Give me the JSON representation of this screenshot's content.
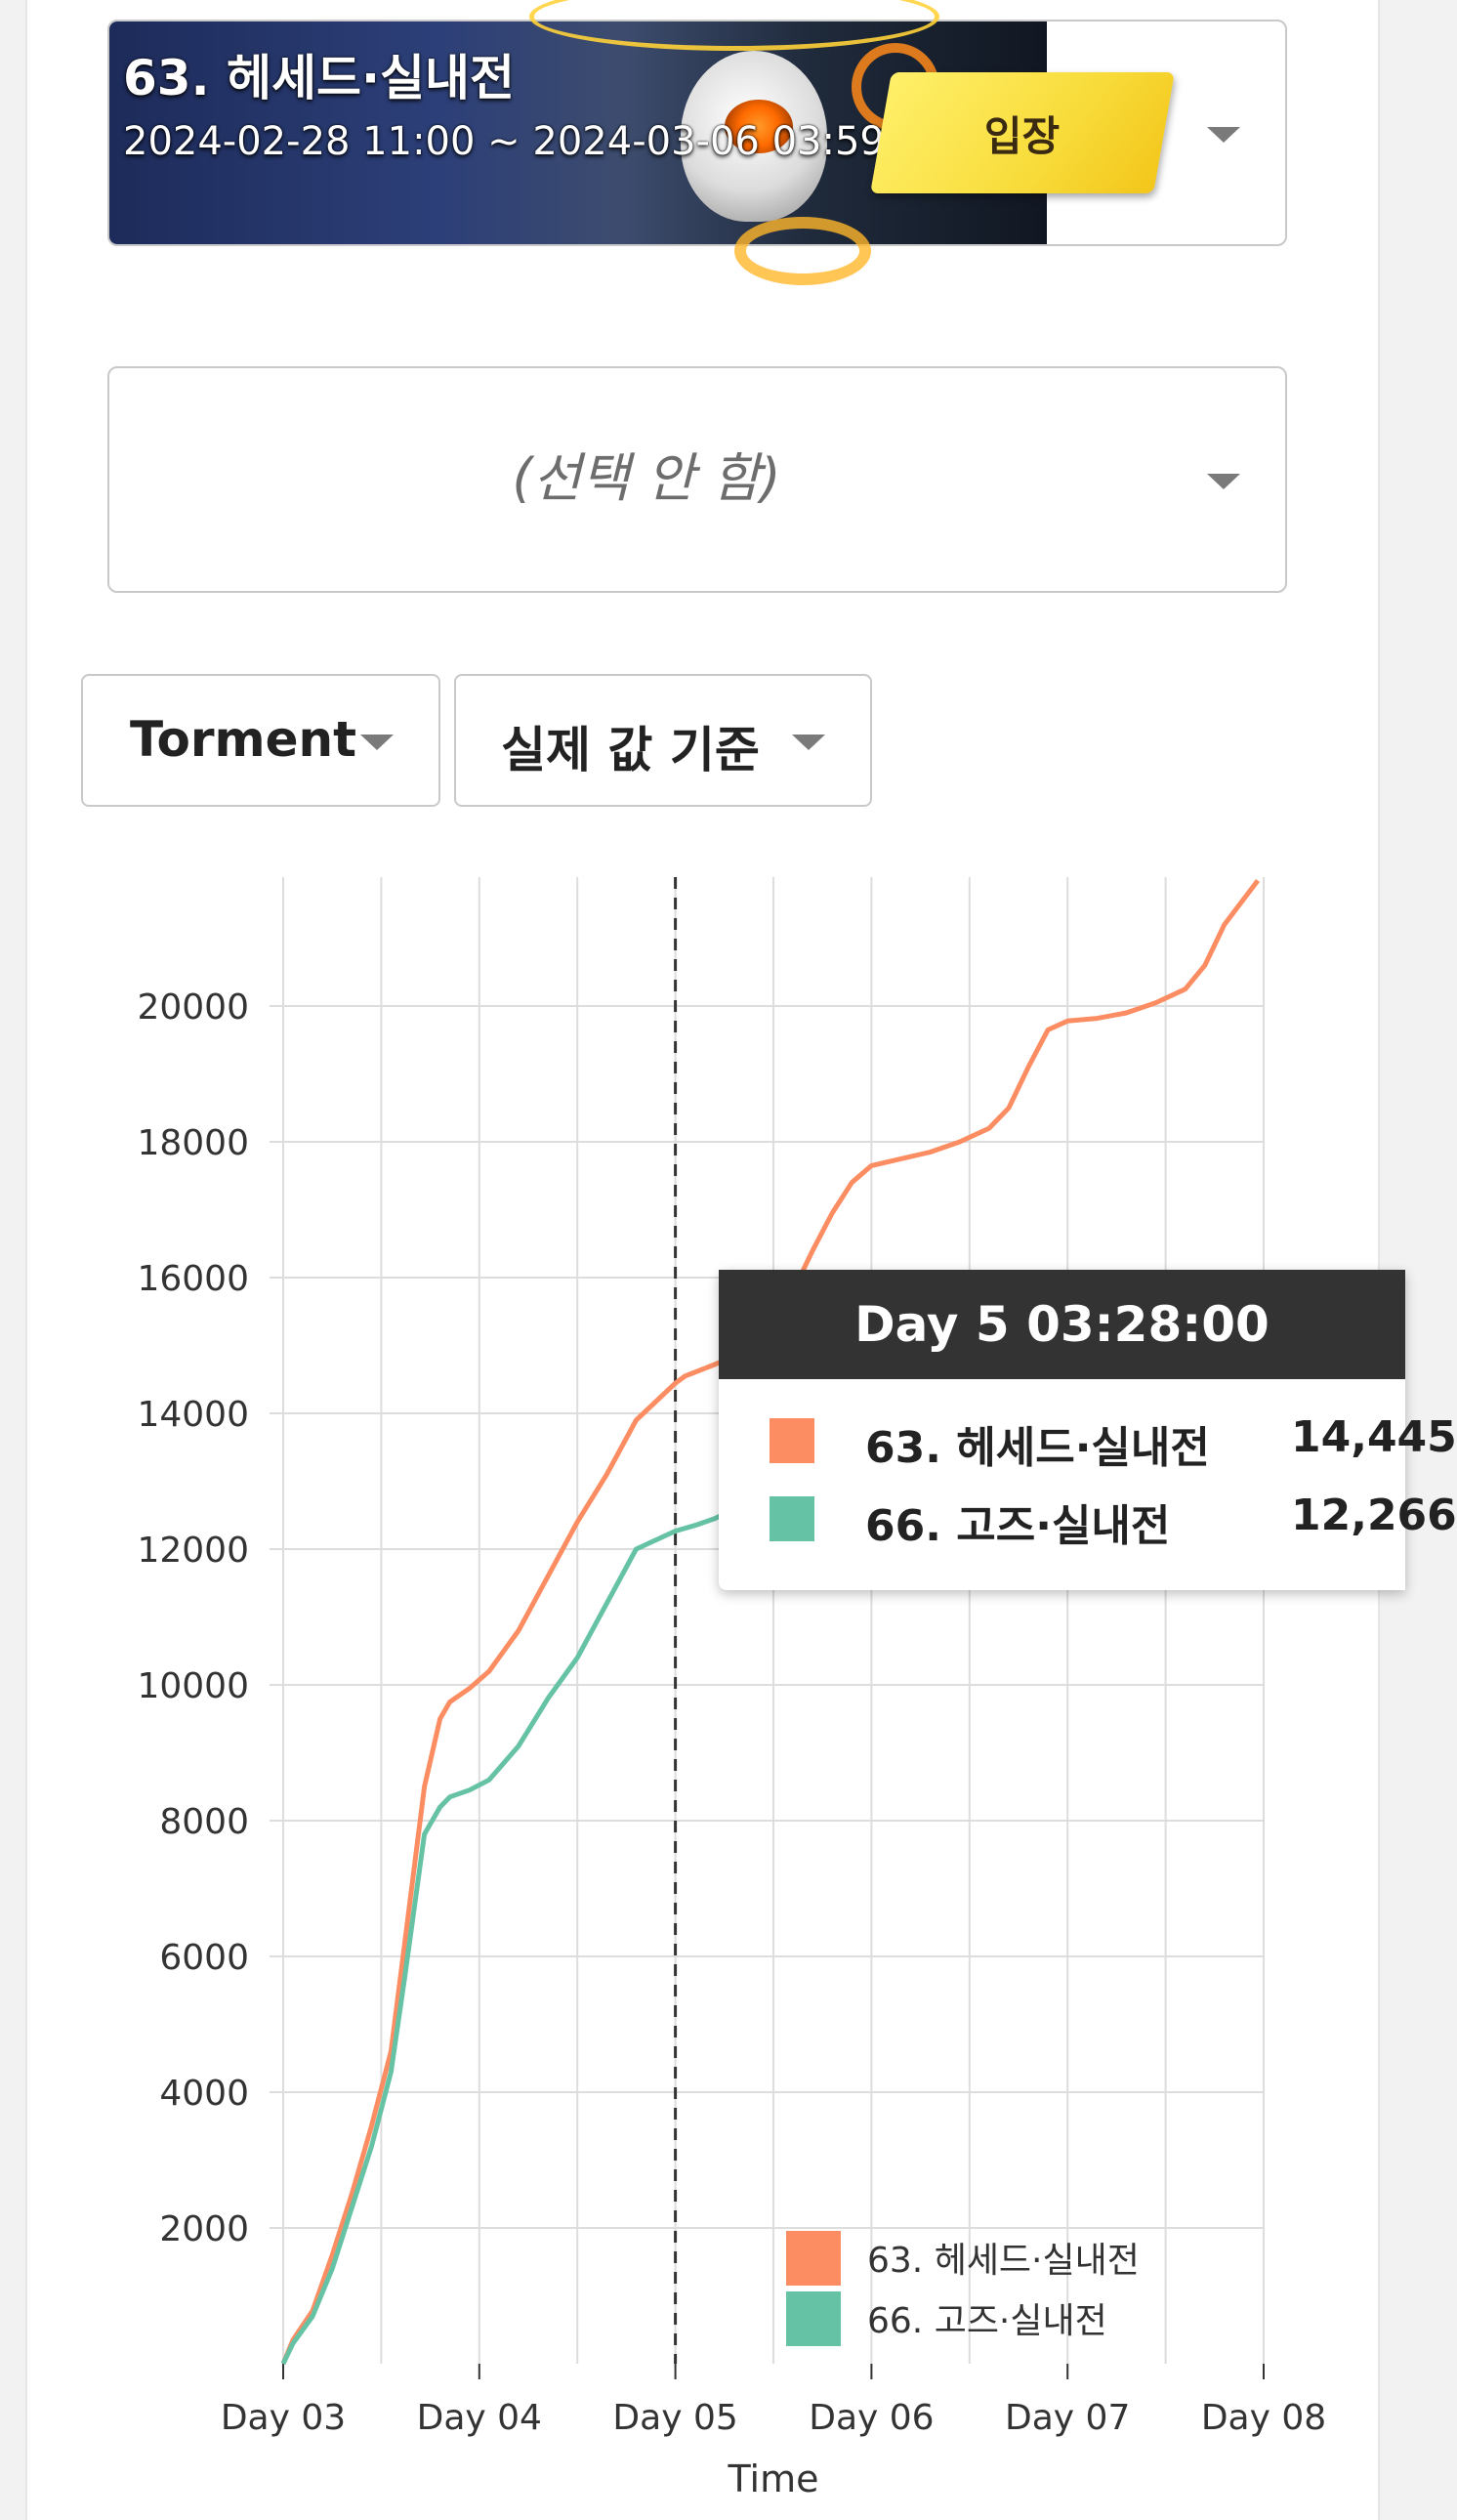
{
  "raid": {
    "title": "63. 헤세드·실내전",
    "dates": "2024-02-28 11:00 ~ 2024-03-06 03:59",
    "enter_label": "입장"
  },
  "compare": {
    "placeholder": "(선택 안 함)"
  },
  "filters": {
    "difficulty": "Torment",
    "mode": "실제 값 기준"
  },
  "tooltip": {
    "title": "Day 5 03:28:00",
    "rows": [
      {
        "name": "63. 헤세드·실내전",
        "value": "14,445",
        "color": "#fc8d62"
      },
      {
        "name": "66. 고즈·실내전",
        "value": "12,266",
        "color": "#66c2a5"
      }
    ]
  },
  "chart_data": {
    "type": "line",
    "xlabel": "Time",
    "ylabel": "",
    "x_ticks": [
      "Day 03",
      "Day 04",
      "Day 05",
      "Day 06",
      "Day 07",
      "Day 08"
    ],
    "y_ticks": [
      2000,
      4000,
      6000,
      8000,
      10000,
      12000,
      14000,
      16000,
      18000,
      20000
    ],
    "xlim": [
      3,
      8
    ],
    "ylim": [
      0,
      21900
    ],
    "grid": true,
    "legend_position": "bottom-right",
    "crosshair_x": 5.0,
    "series": [
      {
        "name": "63. 헤세드·실내전",
        "color": "#fc8d62",
        "points": [
          [
            3.0,
            0
          ],
          [
            3.05,
            350
          ],
          [
            3.15,
            780
          ],
          [
            3.25,
            1600
          ],
          [
            3.35,
            2500
          ],
          [
            3.45,
            3500
          ],
          [
            3.55,
            4600
          ],
          [
            3.62,
            6200
          ],
          [
            3.72,
            8500
          ],
          [
            3.8,
            9500
          ],
          [
            3.85,
            9750
          ],
          [
            3.95,
            9950
          ],
          [
            4.05,
            10200
          ],
          [
            4.2,
            10800
          ],
          [
            4.35,
            11600
          ],
          [
            4.5,
            12400
          ],
          [
            4.65,
            13100
          ],
          [
            4.8,
            13900
          ],
          [
            5.0,
            14445
          ],
          [
            5.05,
            14550
          ],
          [
            5.2,
            14720
          ],
          [
            5.35,
            14900
          ],
          [
            5.5,
            15300
          ],
          [
            5.6,
            15800
          ],
          [
            5.7,
            16400
          ],
          [
            5.8,
            16950
          ],
          [
            5.9,
            17400
          ],
          [
            6.0,
            17650
          ],
          [
            6.15,
            17750
          ],
          [
            6.3,
            17850
          ],
          [
            6.45,
            18000
          ],
          [
            6.6,
            18200
          ],
          [
            6.7,
            18500
          ],
          [
            6.8,
            19100
          ],
          [
            6.9,
            19650
          ],
          [
            7.0,
            19780
          ],
          [
            7.15,
            19820
          ],
          [
            7.3,
            19900
          ],
          [
            7.45,
            20050
          ],
          [
            7.6,
            20250
          ],
          [
            7.7,
            20600
          ],
          [
            7.8,
            21200
          ],
          [
            7.97,
            21850
          ]
        ]
      },
      {
        "name": "66. 고즈·실내전",
        "color": "#66c2a5",
        "points": [
          [
            3.0,
            0
          ],
          [
            3.05,
            300
          ],
          [
            3.15,
            700
          ],
          [
            3.25,
            1400
          ],
          [
            3.35,
            2300
          ],
          [
            3.45,
            3200
          ],
          [
            3.55,
            4300
          ],
          [
            3.62,
            5700
          ],
          [
            3.72,
            7800
          ],
          [
            3.8,
            8200
          ],
          [
            3.85,
            8350
          ],
          [
            3.95,
            8450
          ],
          [
            4.05,
            8600
          ],
          [
            4.2,
            9100
          ],
          [
            4.35,
            9800
          ],
          [
            4.5,
            10400
          ],
          [
            4.65,
            11200
          ],
          [
            4.8,
            12000
          ],
          [
            5.0,
            12266
          ],
          [
            5.1,
            12350
          ],
          [
            5.2,
            12450
          ],
          [
            5.25,
            12520
          ]
        ]
      }
    ]
  }
}
